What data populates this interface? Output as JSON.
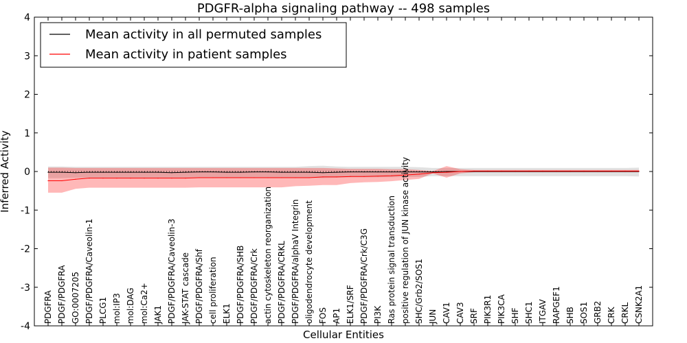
{
  "chart_data": {
    "type": "line",
    "title": "PDGFR-alpha signaling pathway -- 498 samples",
    "xlabel": "Cellular Entities",
    "ylabel": "Inferred Activity",
    "ylim": [
      -4,
      4
    ],
    "yticks": [
      -4,
      -3,
      -2,
      -1,
      0,
      1,
      2,
      3,
      4
    ],
    "grid": false,
    "legend_position": "top-left",
    "categories": [
      "PDGFRA",
      "PDGF/PDGFRA",
      "GO:0007205",
      "PDGF/PDGFRA/Caveolin-1",
      "PLCG1",
      "mol:IP3",
      "mol:DAG",
      "mol:Ca2+",
      "JAK1",
      "PDGF/PDGFRA/Caveolin-3",
      "JAK-STAT cascade",
      "PDGF/PDGFRA/Shf",
      "cell proliferation",
      "ELK1",
      "PDGF/PDGFRA/SHB",
      "PDGF/PDGFRA/Crk",
      "actin cytoskeleton reorganization",
      "PDGF/PDGFRA/CRKL",
      "PDGF/PDGFRA/alphaV Integrin",
      "oligodendrocyte development",
      "FOS",
      "AP1",
      "ELK1/SRF",
      "PDGF/PDGFRA/Crk/C3G",
      "PI3K",
      "Ras protein signal transduction",
      "positive regulation of JUN kinase activity",
      "SHC/Grb2/SOS1",
      "JUN",
      "CAV1",
      "CAV3",
      "SRF",
      "PIK3R1",
      "PIK3CA",
      "SHF",
      "SHC1",
      "ITGAV",
      "RAPGEF1",
      "SHB",
      "SOS1",
      "GRB2",
      "CRK",
      "CRKL",
      "CSNK2A1"
    ],
    "series": [
      {
        "name": "Mean activity in all permuted samples",
        "color": "#000000",
        "values": [
          -0.02,
          -0.02,
          -0.03,
          -0.02,
          -0.02,
          -0.02,
          -0.02,
          -0.02,
          -0.02,
          -0.03,
          -0.02,
          -0.01,
          -0.01,
          -0.02,
          -0.02,
          -0.01,
          -0.01,
          -0.02,
          -0.02,
          -0.02,
          -0.03,
          -0.02,
          -0.01,
          -0.01,
          -0.01,
          -0.01,
          -0.01,
          -0.01,
          -0.01,
          0.0,
          0.0,
          0.0,
          0.0,
          0.0,
          0.0,
          0.0,
          0.0,
          0.0,
          0.0,
          0.0,
          0.0,
          0.0,
          0.0,
          0.0
        ],
        "lower": [
          -0.17,
          -0.17,
          -0.16,
          -0.16,
          -0.16,
          -0.16,
          -0.16,
          -0.16,
          -0.16,
          -0.16,
          -0.16,
          -0.15,
          -0.15,
          -0.16,
          -0.16,
          -0.15,
          -0.15,
          -0.16,
          -0.16,
          -0.16,
          -0.17,
          -0.16,
          -0.15,
          -0.15,
          -0.15,
          -0.15,
          -0.14,
          -0.14,
          -0.12,
          -0.12,
          -0.12,
          -0.12,
          -0.12,
          -0.12,
          -0.12,
          -0.12,
          -0.12,
          -0.12,
          -0.12,
          -0.12,
          -0.12,
          -0.12,
          -0.12,
          -0.13
        ],
        "upper": [
          0.13,
          0.13,
          0.12,
          0.12,
          0.12,
          0.12,
          0.12,
          0.12,
          0.12,
          0.12,
          0.12,
          0.12,
          0.12,
          0.12,
          0.12,
          0.12,
          0.12,
          0.12,
          0.12,
          0.14,
          0.15,
          0.13,
          0.12,
          0.12,
          0.12,
          0.12,
          0.12,
          0.11,
          0.09,
          0.09,
          0.09,
          0.09,
          0.09,
          0.09,
          0.09,
          0.09,
          0.09,
          0.09,
          0.09,
          0.09,
          0.09,
          0.09,
          0.09,
          0.1
        ]
      },
      {
        "name": "Mean activity in patient samples",
        "color": "#ff0000",
        "values": [
          -0.24,
          -0.24,
          -0.2,
          -0.17,
          -0.17,
          -0.17,
          -0.17,
          -0.17,
          -0.17,
          -0.17,
          -0.17,
          -0.16,
          -0.16,
          -0.16,
          -0.16,
          -0.16,
          -0.16,
          -0.16,
          -0.16,
          -0.16,
          -0.14,
          -0.14,
          -0.13,
          -0.13,
          -0.12,
          -0.11,
          -0.09,
          -0.07,
          -0.03,
          -0.02,
          0.0,
          0.01,
          0.01,
          0.01,
          0.01,
          0.01,
          0.01,
          0.01,
          0.01,
          0.01,
          0.01,
          0.01,
          0.01,
          0.01
        ],
        "lower": [
          -0.55,
          -0.55,
          -0.45,
          -0.42,
          -0.42,
          -0.42,
          -0.42,
          -0.42,
          -0.42,
          -0.42,
          -0.42,
          -0.41,
          -0.41,
          -0.41,
          -0.41,
          -0.41,
          -0.41,
          -0.41,
          -0.38,
          -0.37,
          -0.35,
          -0.35,
          -0.3,
          -0.28,
          -0.27,
          -0.25,
          -0.22,
          -0.19,
          -0.05,
          -0.16,
          -0.05,
          -0.02,
          -0.02,
          -0.02,
          -0.02,
          -0.02,
          -0.02,
          -0.02,
          -0.02,
          -0.02,
          -0.02,
          -0.02,
          -0.02,
          -0.02
        ],
        "upper": [
          0.1,
          0.1,
          0.09,
          0.09,
          0.09,
          0.09,
          0.09,
          0.09,
          0.09,
          0.09,
          0.09,
          0.09,
          0.09,
          0.09,
          0.09,
          0.09,
          0.09,
          0.09,
          0.09,
          0.09,
          0.09,
          0.08,
          0.07,
          0.07,
          0.07,
          0.06,
          0.06,
          0.04,
          0.01,
          0.14,
          0.06,
          0.04,
          0.04,
          0.04,
          0.04,
          0.04,
          0.04,
          0.04,
          0.04,
          0.04,
          0.04,
          0.04,
          0.04,
          0.04
        ]
      }
    ],
    "reference_line": {
      "value": 0,
      "style": "dotted",
      "color": "#000000"
    }
  }
}
